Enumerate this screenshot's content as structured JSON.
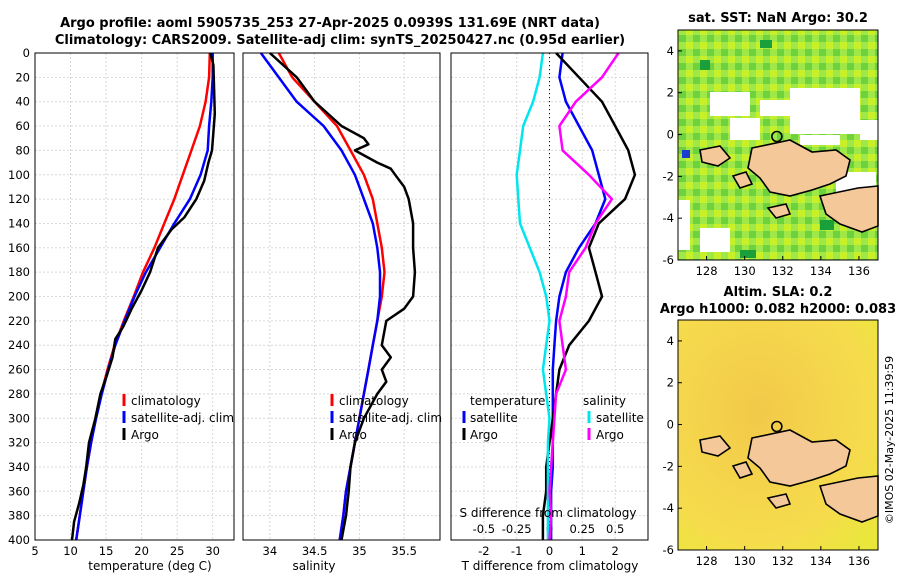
{
  "titles": {
    "line1": "Argo profile: aoml 5905735_253 27-Apr-2025 0.0939S 131.69E (NRT data)",
    "line2": "Climatology: CARS2009. Satellite-adj clim: synTS_20250427.nc (0.95d earlier)",
    "sst": "sat. SST: NaN Argo: 30.2",
    "sla1": "Altim. SLA: 0.2",
    "sla2": "Argo h1000: 0.082 h2000: 0.083",
    "credit": "©IMOS 02-May-2025 11:39:59"
  },
  "colors": {
    "clim": "#ff0000",
    "sat": "#0000ff",
    "argo": "#000000",
    "sal_sat": "#00e5ee",
    "sal_argo": "#ff00ff",
    "land": "#f5c89a"
  },
  "legends": {
    "temp": [
      "climatology",
      "satellite-adj. clim",
      "Argo"
    ],
    "sal": [
      "climatology",
      "satellite-adj. clim",
      "Argo"
    ],
    "diff_t_title": "temperature",
    "diff_s_title": "salinity",
    "diff_t": [
      "satellite",
      "Argo"
    ],
    "diff_s": [
      "satellite",
      "Argo"
    ]
  },
  "chart_data": [
    {
      "type": "line",
      "panel": "temperature",
      "xlabel": "temperature (deg C)",
      "ylabel": "",
      "xlim": [
        5,
        33
      ],
      "ylim": [
        400,
        0
      ],
      "xticks": [
        5,
        10,
        15,
        20,
        25,
        30
      ],
      "yticks": [
        0,
        20,
        40,
        60,
        80,
        100,
        120,
        140,
        160,
        180,
        200,
        220,
        240,
        260,
        280,
        300,
        320,
        340,
        360,
        380,
        400
      ],
      "series": [
        {
          "name": "climatology",
          "points": [
            [
              29.6,
              0
            ],
            [
              29.5,
              20
            ],
            [
              29.0,
              40
            ],
            [
              28.2,
              60
            ],
            [
              27.0,
              80
            ],
            [
              25.8,
              100
            ],
            [
              24.6,
              120
            ],
            [
              23.2,
              140
            ],
            [
              21.8,
              160
            ],
            [
              20.2,
              180
            ],
            [
              18.9,
              200
            ],
            [
              17.5,
              220
            ],
            [
              16.2,
              240
            ],
            [
              15.2,
              260
            ],
            [
              14.3,
              280
            ],
            [
              13.5,
              300
            ],
            [
              12.9,
              320
            ],
            [
              12.3,
              340
            ],
            [
              11.8,
              360
            ],
            [
              11.3,
              380
            ],
            [
              10.8,
              400
            ]
          ]
        },
        {
          "name": "satellite-adj. clim",
          "points": [
            [
              30.0,
              0
            ],
            [
              30.0,
              20
            ],
            [
              29.8,
              40
            ],
            [
              29.5,
              60
            ],
            [
              29.3,
              80
            ],
            [
              28.3,
              100
            ],
            [
              26.8,
              120
            ],
            [
              24.6,
              140
            ],
            [
              22.6,
              160
            ],
            [
              20.6,
              180
            ],
            [
              19.0,
              200
            ],
            [
              17.6,
              220
            ],
            [
              16.3,
              240
            ],
            [
              15.3,
              260
            ],
            [
              14.4,
              280
            ],
            [
              13.6,
              300
            ],
            [
              12.9,
              320
            ],
            [
              12.3,
              340
            ],
            [
              11.8,
              360
            ],
            [
              11.3,
              380
            ],
            [
              10.8,
              400
            ]
          ]
        },
        {
          "name": "Argo",
          "points": [
            [
              29.7,
              0
            ],
            [
              30.1,
              10
            ],
            [
              30.2,
              30
            ],
            [
              30.3,
              50
            ],
            [
              30.1,
              65
            ],
            [
              29.9,
              80
            ],
            [
              29.4,
              90
            ],
            [
              28.8,
              105
            ],
            [
              27.7,
              120
            ],
            [
              26.0,
              135
            ],
            [
              24.2,
              145
            ],
            [
              22.3,
              160
            ],
            [
              21.2,
              180
            ],
            [
              20.0,
              195
            ],
            [
              18.6,
              210
            ],
            [
              17.4,
              225
            ],
            [
              16.3,
              235
            ],
            [
              15.9,
              250
            ],
            [
              15.1,
              265
            ],
            [
              14.2,
              280
            ],
            [
              13.5,
              300
            ],
            [
              12.6,
              320
            ],
            [
              12.2,
              340
            ],
            [
              11.8,
              355
            ],
            [
              11.2,
              370
            ],
            [
              10.5,
              385
            ],
            [
              10.2,
              400
            ]
          ]
        }
      ]
    },
    {
      "type": "line",
      "panel": "salinity",
      "xlabel": "salinity",
      "ylabel": "",
      "xlim": [
        33.7,
        35.9
      ],
      "ylim": [
        400,
        0
      ],
      "xticks": [
        34,
        34.5,
        35,
        35.5
      ],
      "yticks": [
        0,
        20,
        40,
        60,
        80,
        100,
        120,
        140,
        160,
        180,
        200,
        220,
        240,
        260,
        280,
        300,
        320,
        340,
        360,
        380,
        400
      ],
      "series": [
        {
          "name": "climatology",
          "points": [
            [
              34.1,
              0
            ],
            [
              34.25,
              20
            ],
            [
              34.5,
              40
            ],
            [
              34.75,
              60
            ],
            [
              34.9,
              80
            ],
            [
              35.05,
              100
            ],
            [
              35.15,
              120
            ],
            [
              35.2,
              140
            ],
            [
              35.25,
              160
            ],
            [
              35.28,
              180
            ],
            [
              35.25,
              200
            ],
            [
              35.2,
              220
            ],
            [
              35.15,
              240
            ],
            [
              35.1,
              260
            ],
            [
              35.05,
              280
            ],
            [
              35.0,
              300
            ],
            [
              34.95,
              320
            ],
            [
              34.9,
              340
            ],
            [
              34.85,
              360
            ],
            [
              34.82,
              380
            ],
            [
              34.78,
              400
            ]
          ]
        },
        {
          "name": "satellite-adj. clim",
          "points": [
            [
              33.9,
              0
            ],
            [
              34.0,
              10
            ],
            [
              34.3,
              40
            ],
            [
              34.6,
              60
            ],
            [
              34.8,
              80
            ],
            [
              34.95,
              100
            ],
            [
              35.05,
              120
            ],
            [
              35.15,
              140
            ],
            [
              35.2,
              160
            ],
            [
              35.23,
              180
            ],
            [
              35.23,
              200
            ],
            [
              35.2,
              220
            ],
            [
              35.15,
              240
            ],
            [
              35.1,
              260
            ],
            [
              35.05,
              280
            ],
            [
              35.0,
              300
            ],
            [
              34.95,
              320
            ],
            [
              34.9,
              340
            ],
            [
              34.85,
              360
            ],
            [
              34.82,
              380
            ],
            [
              34.78,
              400
            ]
          ]
        },
        {
          "name": "Argo",
          "points": [
            [
              34.0,
              0
            ],
            [
              34.15,
              10
            ],
            [
              34.3,
              20
            ],
            [
              34.5,
              40
            ],
            [
              34.8,
              60
            ],
            [
              35.05,
              70
            ],
            [
              35.1,
              75
            ],
            [
              34.95,
              80
            ],
            [
              35.2,
              90
            ],
            [
              35.35,
              95
            ],
            [
              35.4,
              100
            ],
            [
              35.5,
              110
            ],
            [
              35.55,
              120
            ],
            [
              35.6,
              140
            ],
            [
              35.6,
              160
            ],
            [
              35.62,
              180
            ],
            [
              35.6,
              200
            ],
            [
              35.5,
              210
            ],
            [
              35.3,
              220
            ],
            [
              35.25,
              240
            ],
            [
              35.35,
              250
            ],
            [
              35.25,
              260
            ],
            [
              35.3,
              270
            ],
            [
              35.2,
              280
            ],
            [
              35.05,
              300
            ],
            [
              34.95,
              320
            ],
            [
              34.9,
              340
            ],
            [
              34.88,
              360
            ],
            [
              34.85,
              380
            ],
            [
              34.8,
              400
            ]
          ]
        }
      ]
    },
    {
      "type": "line",
      "panel": "differences",
      "xlabel": "T difference from climatology",
      "ylabel": "",
      "xlim": [
        -3,
        3
      ],
      "ylim": [
        400,
        0
      ],
      "xticks": [
        -2,
        -1,
        0,
        1,
        2
      ],
      "secondary_xlabel": "S difference from climatology",
      "secondary_xticks": [
        -0.5,
        -0.25,
        0,
        0.25,
        0.5
      ],
      "yticks": [
        0,
        20,
        40,
        60,
        80,
        100,
        120,
        140,
        160,
        180,
        200,
        220,
        240,
        260,
        280,
        300,
        320,
        340,
        360,
        380,
        400
      ],
      "series": [
        {
          "name": "temperature satellite",
          "points": [
            [
              0.4,
              0
            ],
            [
              0.3,
              20
            ],
            [
              0.5,
              40
            ],
            [
              0.9,
              60
            ],
            [
              1.3,
              80
            ],
            [
              1.5,
              100
            ],
            [
              1.7,
              120
            ],
            [
              1.4,
              140
            ],
            [
              0.9,
              160
            ],
            [
              0.5,
              180
            ],
            [
              0.3,
              200
            ],
            [
              0.2,
              220
            ],
            [
              0.15,
              240
            ],
            [
              0.1,
              260
            ],
            [
              0.1,
              280
            ],
            [
              0.1,
              300
            ],
            [
              0.1,
              320
            ],
            [
              0.1,
              340
            ],
            [
              0.05,
              360
            ],
            [
              0.05,
              380
            ],
            [
              0.05,
              400
            ]
          ]
        },
        {
          "name": "temperature Argo",
          "points": [
            [
              0.2,
              0
            ],
            [
              0.9,
              20
            ],
            [
              1.6,
              40
            ],
            [
              2.0,
              60
            ],
            [
              2.4,
              80
            ],
            [
              2.6,
              100
            ],
            [
              2.3,
              120
            ],
            [
              1.5,
              140
            ],
            [
              1.2,
              160
            ],
            [
              1.4,
              180
            ],
            [
              1.6,
              200
            ],
            [
              1.2,
              220
            ],
            [
              0.6,
              240
            ],
            [
              0.3,
              260
            ],
            [
              0.2,
              280
            ],
            [
              0.1,
              300
            ],
            [
              0.0,
              320
            ],
            [
              -0.1,
              340
            ],
            [
              -0.1,
              360
            ],
            [
              -0.2,
              380
            ],
            [
              -0.2,
              400
            ]
          ]
        },
        {
          "name": "salinity satellite",
          "points": [
            [
              -0.2,
              0
            ],
            [
              -0.3,
              20
            ],
            [
              -0.5,
              40
            ],
            [
              -0.8,
              60
            ],
            [
              -0.9,
              80
            ],
            [
              -1.0,
              100
            ],
            [
              -0.95,
              120
            ],
            [
              -0.9,
              140
            ],
            [
              -0.6,
              160
            ],
            [
              -0.3,
              180
            ],
            [
              -0.1,
              200
            ],
            [
              0.0,
              220
            ],
            [
              -0.1,
              240
            ],
            [
              -0.2,
              260
            ],
            [
              -0.1,
              280
            ],
            [
              0.0,
              300
            ],
            [
              -0.05,
              320
            ],
            [
              -0.05,
              340
            ],
            [
              -0.05,
              360
            ],
            [
              -0.05,
              380
            ],
            [
              -0.05,
              400
            ]
          ]
        },
        {
          "name": "salinity Argo",
          "points": [
            [
              2.1,
              0
            ],
            [
              1.6,
              20
            ],
            [
              0.8,
              40
            ],
            [
              0.3,
              60
            ],
            [
              0.4,
              80
            ],
            [
              1.2,
              100
            ],
            [
              1.9,
              120
            ],
            [
              1.4,
              140
            ],
            [
              1.1,
              160
            ],
            [
              0.6,
              180
            ],
            [
              0.5,
              200
            ],
            [
              0.3,
              220
            ],
            [
              0.4,
              240
            ],
            [
              0.5,
              260
            ],
            [
              0.2,
              280
            ],
            [
              0.15,
              300
            ],
            [
              0.1,
              320
            ],
            [
              0.05,
              340
            ],
            [
              0.0,
              360
            ],
            [
              0.05,
              380
            ],
            [
              0.0,
              400
            ]
          ]
        }
      ]
    },
    {
      "type": "heatmap",
      "panel": "sst map",
      "title": "sat. SST: NaN Argo: 30.2",
      "xlim": [
        126.5,
        137
      ],
      "ylim": [
        -6,
        5
      ],
      "xticks": [
        128,
        130,
        132,
        134,
        136
      ],
      "yticks": [
        -6,
        -4,
        -2,
        0,
        2,
        4
      ],
      "argo_position": [
        131.69,
        -0.0939
      ]
    },
    {
      "type": "heatmap",
      "panel": "sla map",
      "title": "Altim. SLA: 0.2",
      "xlim": [
        126.5,
        137
      ],
      "ylim": [
        -6,
        5
      ],
      "xticks": [
        128,
        130,
        132,
        134,
        136
      ],
      "yticks": [
        -6,
        -4,
        -2,
        0,
        2,
        4
      ],
      "argo_position": [
        131.69,
        -0.0939
      ]
    }
  ]
}
